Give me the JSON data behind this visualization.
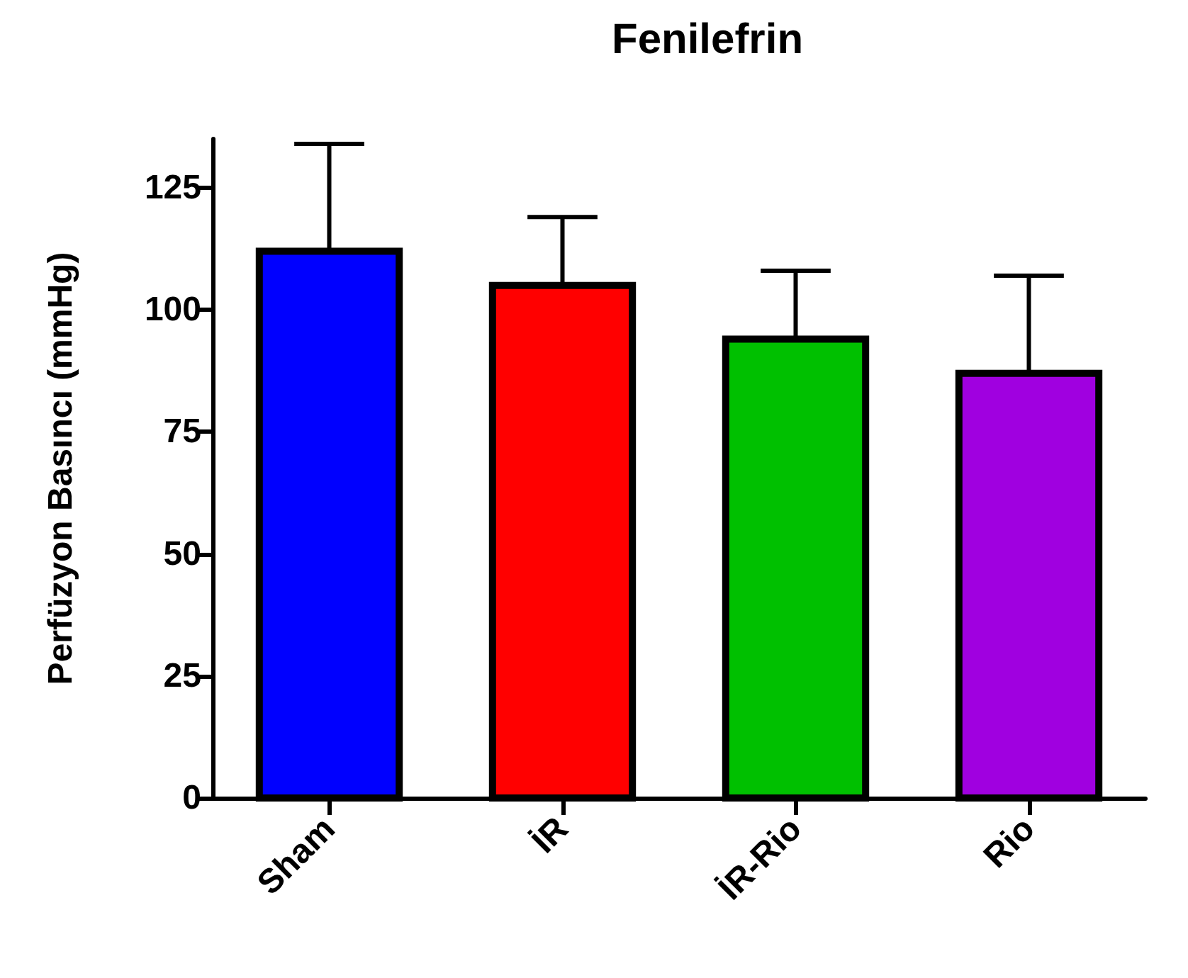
{
  "chart_data": {
    "type": "bar",
    "title": "Fenilefrin",
    "ylabel": "Perfüzyon Basıncı (mmHg)",
    "categories": [
      "Sham",
      "İR",
      "İR-Rio",
      "Rio"
    ],
    "values": [
      112,
      105,
      94,
      87
    ],
    "colors": [
      "#0000ff",
      "#ff0000",
      "#00c000",
      "#a000e0"
    ],
    "errors": [
      [
        112,
        134
      ],
      [
        105,
        119
      ],
      [
        94,
        108
      ],
      [
        87,
        107
      ]
    ],
    "ylim": [
      0,
      135
    ],
    "yticks": [
      0,
      25,
      50,
      75,
      100,
      125
    ],
    "grid": false
  }
}
